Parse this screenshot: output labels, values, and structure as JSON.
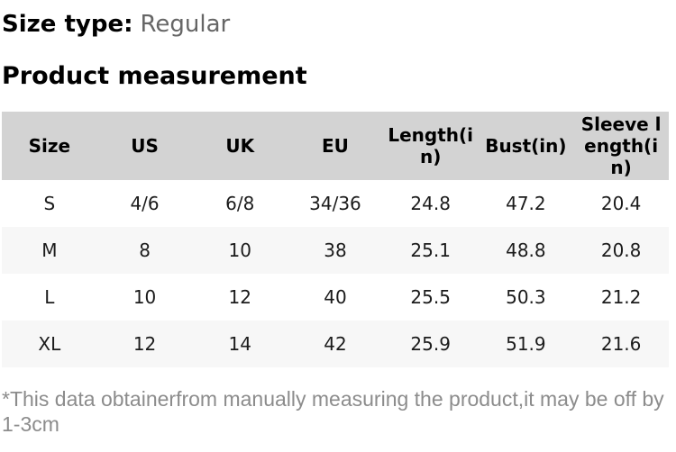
{
  "size_type": {
    "label": "Size type:",
    "value": "Regular"
  },
  "section_title": "Product measurement",
  "table": {
    "headers": [
      "Size",
      "US",
      "UK",
      "EU",
      "Length(in)",
      "Bust(in)",
      "Sleeve length(in)"
    ],
    "rows": [
      [
        "S",
        "4/6",
        "6/8",
        "34/36",
        "24.8",
        "47.2",
        "20.4"
      ],
      [
        "M",
        "8",
        "10",
        "38",
        "25.1",
        "48.8",
        "20.8"
      ],
      [
        "L",
        "10",
        "12",
        "40",
        "25.5",
        "50.3",
        "21.2"
      ],
      [
        "XL",
        "12",
        "14",
        "42",
        "25.9",
        "51.9",
        "21.6"
      ]
    ]
  },
  "footnote": "*This data obtainerfrom manually measuring the product,it may be off by 1-3cm",
  "colors": {
    "header_bg": "#d3d3d3",
    "alt_row_bg": "#f7f7f7",
    "text_dark": "#1b1b1b",
    "muted_text": "#666666",
    "footnote_text": "#8c8c8c"
  }
}
